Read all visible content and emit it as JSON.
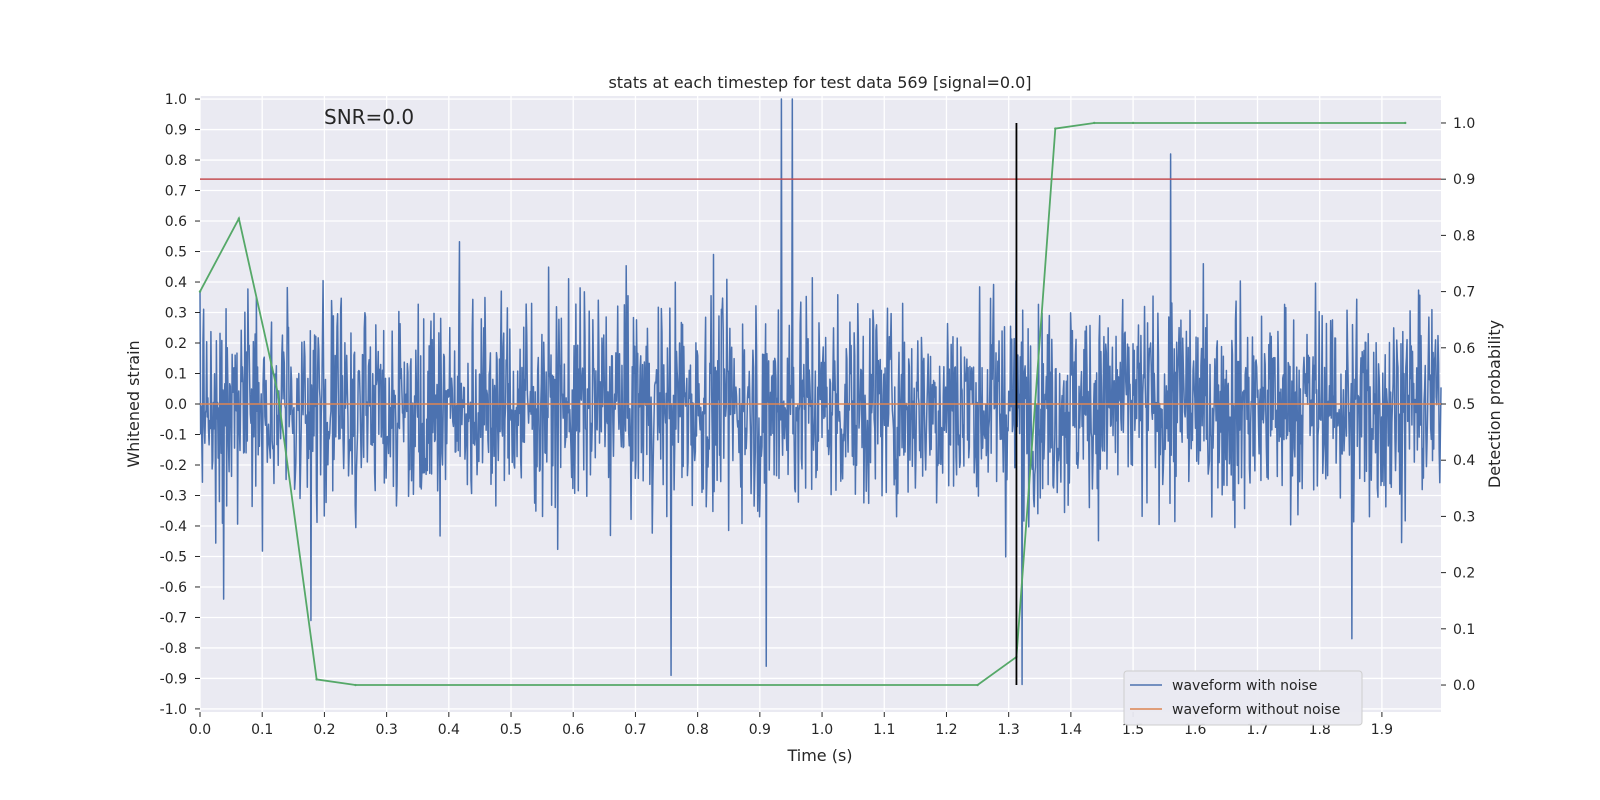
{
  "chart_data": {
    "type": "line",
    "title": "stats at each timestep for test data 569 [signal=0.0]",
    "xlabel": "Time (s)",
    "ylabel": "Whitened strain",
    "y2label": "Detection probability",
    "annotation": "SNR=0.0",
    "xlim": [
      0.0,
      1.995
    ],
    "ylim": [
      -1.01,
      1.01
    ],
    "y2lim": [
      -0.048,
      1.048
    ],
    "xticks": [
      "0.0",
      "0.1",
      "0.2",
      "0.3",
      "0.4",
      "0.5",
      "0.6",
      "0.7",
      "0.8",
      "0.9",
      "1.0",
      "1.1",
      "1.2",
      "1.3",
      "1.4",
      "1.5",
      "1.6",
      "1.7",
      "1.8",
      "1.9"
    ],
    "yticks": [
      "1.0",
      "0.9",
      "0.8",
      "0.7",
      "0.6",
      "0.5",
      "0.4",
      "0.3",
      "0.2",
      "0.1",
      "0.0",
      "-0.1",
      "-0.2",
      "-0.3",
      "-0.4",
      "-0.5",
      "-0.6",
      "-0.7",
      "-0.8",
      "-0.9",
      "-1.0"
    ],
    "y2ticks": [
      "1.0",
      "0.9",
      "0.8",
      "0.7",
      "0.6",
      "0.5",
      "0.4",
      "0.3",
      "0.2",
      "0.1",
      "0.0"
    ],
    "grid": true,
    "legend_position": "lower right",
    "colors": {
      "noise": "#4c72b0",
      "clean": "#dd8452",
      "probability": "#55a868",
      "threshold": "#c44e52",
      "marker": "#000000",
      "background": "#eaeaf2"
    },
    "series": [
      {
        "name": "waveform with noise",
        "type": "noise",
        "x_range": [
          0.0,
          1.995
        ],
        "amplitude_range": [
          -1.0,
          1.0
        ]
      },
      {
        "name": "waveform without noise",
        "x": [
          0.0,
          1.995
        ],
        "y": [
          0.0,
          0.0
        ]
      }
    ],
    "probability": {
      "x": [
        0.0,
        0.0625,
        0.125,
        0.1875,
        0.25,
        1.25,
        1.3125,
        1.375,
        1.4375,
        1.5,
        1.9375
      ],
      "y": [
        0.7,
        0.83,
        0.52,
        0.01,
        0.0,
        0.0,
        0.05,
        0.99,
        1.0,
        1.0,
        1.0
      ]
    },
    "threshold": {
      "y2": 0.9
    },
    "marker_line": {
      "x": 1.3125,
      "y2_range": [
        0.0,
        1.0
      ]
    },
    "noise_spikes": [
      {
        "x": 0.935,
        "y": 1.0
      },
      {
        "x": 0.952,
        "y": 1.0
      },
      {
        "x": 1.56,
        "y": 0.82
      },
      {
        "x": 0.757,
        "y": -0.89
      },
      {
        "x": 0.91,
        "y": -0.86
      },
      {
        "x": 1.322,
        "y": -0.92
      },
      {
        "x": 1.852,
        "y": -0.77
      },
      {
        "x": 0.178,
        "y": -0.71
      },
      {
        "x": 0.038,
        "y": -0.64
      }
    ]
  }
}
